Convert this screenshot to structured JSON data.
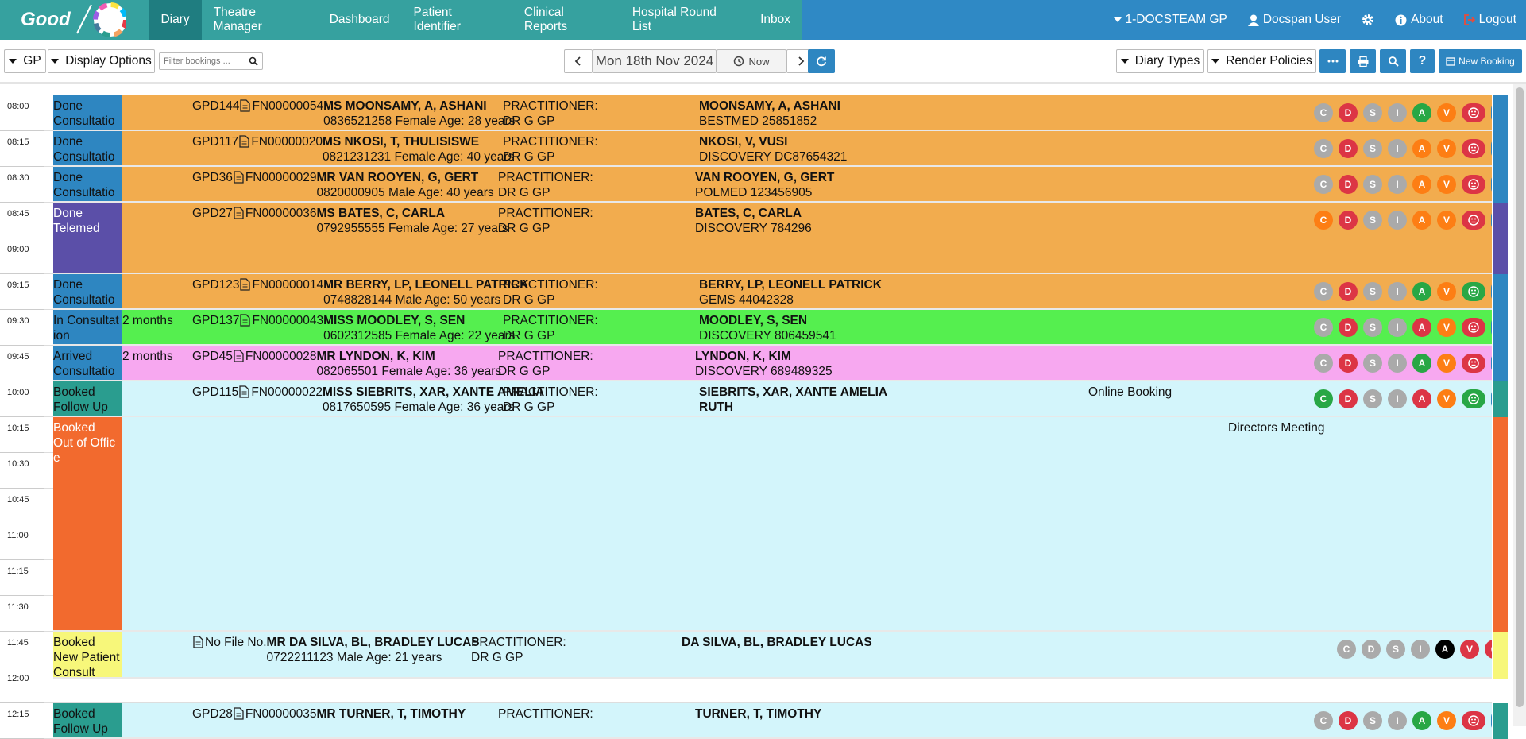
{
  "nav": {
    "logo": "Good",
    "items": [
      "Diary",
      "Theatre Manager",
      "Dashboard",
      "Patient Identifier",
      "Clinical Reports",
      "Hospital Round List",
      "Inbox"
    ],
    "right": [
      "1-DOCSTEAM GP",
      "Docspan User",
      "About",
      "Logout"
    ]
  },
  "toolbar": {
    "left": [
      "GP",
      "Display Options"
    ],
    "filter_placeholder": "Filter bookings ...",
    "date": "Mon 18th Nov 2024",
    "now": "Now",
    "right": [
      "Diary Types",
      "Render Policies"
    ],
    "help": "?",
    "new_booking": "New Booking"
  },
  "times": [
    "08:00",
    "08:15",
    "08:30",
    "08:45",
    "09:00",
    "09:15",
    "09:30",
    "09:45",
    "10:00",
    "10:15",
    "10:30",
    "10:45",
    "11:00",
    "11:15",
    "11:30",
    "11:45",
    "12:00",
    "12:15"
  ],
  "button_labels": [
    "C",
    "D",
    "S",
    "I",
    "A",
    "V"
  ],
  "bookings": [
    {
      "status": "Done",
      "type": "Consultation",
      "code": "GPD144",
      "file": "FN00000054",
      "name": "MS MOONSAMY, A, ASHANI",
      "detail": "0836521258 Female Age: 28 years",
      "practitioner_label": "PRACTITIONER:",
      "practitioner": "DR G GP",
      "member": "MOONSAMY, A, ASHANI",
      "scheme": "BESTMED 25851852",
      "row_color": "#f2ac4e",
      "status_color": "#2e86c1",
      "button_colors": [
        "#aaaaaa",
        "#dc3545",
        "#aaaaaa",
        "#aaaaaa",
        "#28a745",
        "#fd7e14"
      ],
      "icon_colors": [
        "#dc3545",
        "#2e86c1"
      ]
    },
    {
      "status": "Done",
      "type": "Consultation",
      "code": "GPD117",
      "file": "FN00000020",
      "name": "MS NKOSI, T, THULISISWE",
      "detail": "0821231231 Female Age: 40 years",
      "practitioner_label": "PRACTITIONER:",
      "practitioner": "DR G GP",
      "member": "NKOSI, V, VUSI",
      "scheme": "DISCOVERY DC87654321",
      "row_color": "#f2ac4e",
      "status_color": "#2e86c1",
      "button_colors": [
        "#aaaaaa",
        "#dc3545",
        "#aaaaaa",
        "#aaaaaa",
        "#fd7e14",
        "#fd7e14"
      ],
      "icon_colors": [
        "#dc3545",
        "#2e86c1"
      ]
    },
    {
      "status": "Done",
      "type": "Consultation",
      "code": "GPD36",
      "file": "FN00000029",
      "name": "MR VAN ROOYEN, G, GERT",
      "detail": "0820000905 Male Age: 40 years",
      "practitioner_label": "PRACTITIONER:",
      "practitioner": "DR G GP",
      "member": "VAN ROOYEN, G, GERT",
      "scheme": "POLMED 123456905",
      "row_color": "#f2ac4e",
      "status_color": "#2e86c1",
      "button_colors": [
        "#aaaaaa",
        "#dc3545",
        "#aaaaaa",
        "#aaaaaa",
        "#fd7e14",
        "#fd7e14"
      ],
      "icon_colors": [
        "#dc3545",
        "#2e86c1"
      ]
    },
    {
      "status": "Done",
      "type": "Telemed",
      "code": "GPD27",
      "file": "FN00000036",
      "name": "MS BATES, C, CARLA",
      "detail": "0792955555 Female Age: 27 years",
      "practitioner_label": "PRACTITIONER:",
      "practitioner": "DR G GP",
      "member": "BATES, C, CARLA",
      "scheme": "DISCOVERY 784296",
      "row_color": "#f2ac4e",
      "status_color": "#5b4fa8",
      "button_colors": [
        "#fd7e14",
        "#dc3545",
        "#aaaaaa",
        "#aaaaaa",
        "#fd7e14",
        "#fd7e14"
      ],
      "icon_colors": [
        "#dc3545",
        "#2e86c1"
      ]
    },
    {
      "status": "Done",
      "type": "Consultation",
      "code": "GPD123",
      "file": "FN00000014",
      "name": "MR BERRY, LP, LEONELL PATRICK",
      "detail": "0748828144 Male Age: 50 years",
      "practitioner_label": "PRACTITIONER:",
      "practitioner": "DR G GP",
      "member": "BERRY, LP, LEONELL PATRICK",
      "scheme": "GEMS 44042328",
      "row_color": "#f2ac4e",
      "status_color": "#2e86c1",
      "button_colors": [
        "#aaaaaa",
        "#dc3545",
        "#aaaaaa",
        "#aaaaaa",
        "#28a745",
        "#fd7e14"
      ],
      "icon_colors": [
        "#28a745",
        "#2e86c1"
      ]
    },
    {
      "status": "In Consultation",
      "extra": "2 months",
      "code": "GPD137",
      "file": "FN00000043",
      "name": "MISS MOODLEY, S, SEN",
      "detail": "0602312585 Female Age: 22 years",
      "practitioner_label": "PRACTITIONER:",
      "practitioner": "DR G GP",
      "member": "MOODLEY, S, SEN",
      "scheme": "DISCOVERY 806459541",
      "row_color": "#55ef4f",
      "status_color": "#2e86c1",
      "button_colors": [
        "#aaaaaa",
        "#dc3545",
        "#aaaaaa",
        "#aaaaaa",
        "#dc3545",
        "#fd7e14"
      ],
      "icon_colors": [
        "#dc3545",
        "#2e86c1"
      ]
    },
    {
      "status": "Arrived",
      "type": "Consultation",
      "extra": "2 months",
      "code": "GPD45",
      "file": "FN00000028",
      "name": "MR LYNDON, K, KIM",
      "detail": "082065501 Female Age: 36 years",
      "practitioner_label": "PRACTITIONER:",
      "practitioner": "DR G GP",
      "member": "LYNDON, K, KIM",
      "scheme": "DISCOVERY 689489325",
      "row_color": "#f7a8f0",
      "status_color": "#2e86c1",
      "button_colors": [
        "#aaaaaa",
        "#dc3545",
        "#aaaaaa",
        "#aaaaaa",
        "#28a745",
        "#fd7e14"
      ],
      "icon_colors": [
        "#dc3545",
        "#2e86c1"
      ]
    },
    {
      "status": "Booked",
      "type": "Follow Up",
      "code": "GPD115",
      "file": "FN00000022",
      "name": "MISS SIEBRITS, XAR, XANTE AMELIA",
      "detail": "0817650595 Female Age: 36 years",
      "practitioner_label": "PRACTITIONER:",
      "practitioner": "DR G GP",
      "member": "SIEBRITS, XAR, XANTE AMELIA RUTH",
      "note": "Online Booking",
      "row_color": "#d3f5fb",
      "status_color": "#2a9d8f",
      "button_colors": [
        "#28a745",
        "#dc3545",
        "#aaaaaa",
        "#aaaaaa",
        "#dc3545",
        "#fd7e14"
      ],
      "icon_colors": [
        "#28a745",
        "#2e86c1"
      ]
    },
    {
      "status": "Booked",
      "type": "Out of Office",
      "note": "Directors Meeting",
      "row_color": "#d3f5fb",
      "status_color": "#f26a2e"
    },
    {
      "status": "Booked",
      "type": "New Patient Consult",
      "file": "No File No.",
      "name": "MR DA SILVA, BL, BRADLEY LUCAS",
      "detail": "0722211123 Male Age: 21 years",
      "practitioner_label": "PRACTITIONER:",
      "practitioner": "DR G GP",
      "member": "DA SILVA, BL, BRADLEY LUCAS",
      "row_color": "#d3f5fb",
      "status_color": "#f7f77a",
      "button_colors": [
        "#aaaaaa",
        "#aaaaaa",
        "#aaaaaa",
        "#aaaaaa",
        "#000000",
        "#dc3545"
      ],
      "icon_colors": [
        "#dc3545"
      ]
    },
    {
      "status": "Booked",
      "type": "Follow Up",
      "code": "GPD28",
      "file": "FN00000035",
      "name": "MR TURNER, T, TIMOTHY",
      "practitioner_label": "PRACTITIONER:",
      "member": "TURNER, T, TIMOTHY",
      "row_color": "#d3f5fb",
      "status_color": "#2a9d8f",
      "button_colors": [
        "#aaaaaa",
        "#dc3545",
        "#aaaaaa",
        "#aaaaaa",
        "#28a745",
        "#fd7e14"
      ],
      "icon_colors": [
        "#dc3545",
        "#2e86c1"
      ]
    }
  ]
}
